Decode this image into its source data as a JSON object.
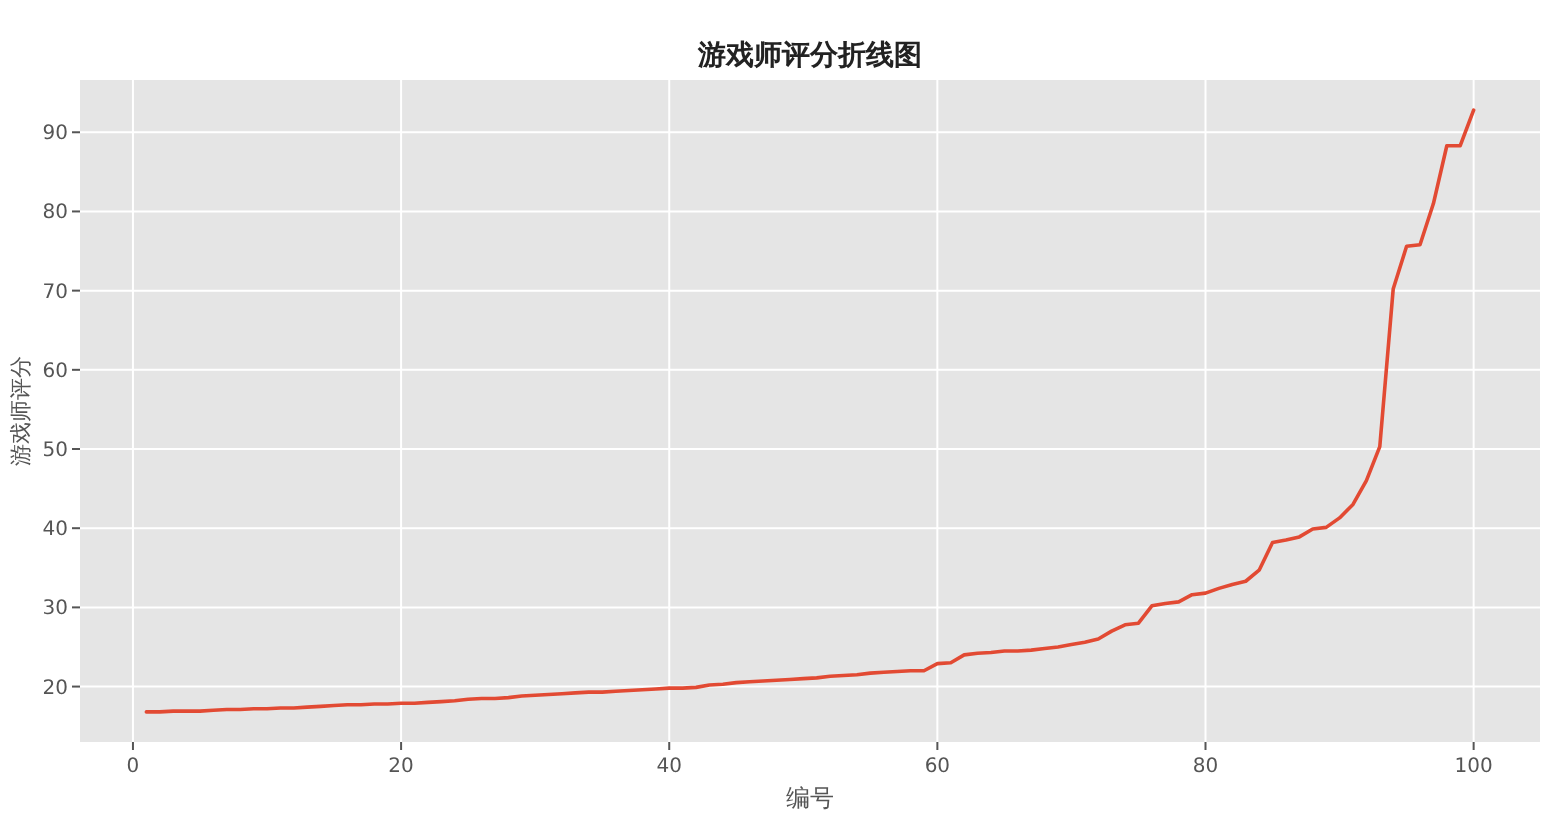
{
  "chart_data": {
    "type": "line",
    "title": "游戏师评分折线图",
    "xlabel": "编号",
    "ylabel": "游戏师评分",
    "x": [
      1,
      2,
      3,
      4,
      5,
      6,
      7,
      8,
      9,
      10,
      11,
      12,
      13,
      14,
      15,
      16,
      17,
      18,
      19,
      20,
      21,
      22,
      23,
      24,
      25,
      26,
      27,
      28,
      29,
      30,
      31,
      32,
      33,
      34,
      35,
      36,
      37,
      38,
      39,
      40,
      41,
      42,
      43,
      44,
      45,
      46,
      47,
      48,
      49,
      50,
      51,
      52,
      53,
      54,
      55,
      56,
      57,
      58,
      59,
      60,
      61,
      62,
      63,
      64,
      65,
      66,
      67,
      68,
      69,
      70,
      71,
      72,
      73,
      74,
      75,
      76,
      77,
      78,
      79,
      80,
      81,
      82,
      83,
      84,
      85,
      86,
      87,
      88,
      89,
      90,
      91,
      92,
      93,
      94,
      95,
      96,
      97,
      98,
      99,
      100
    ],
    "series": [
      {
        "color": "#e24a33",
        "values": [
          16.8,
          16.8,
          16.9,
          16.9,
          16.9,
          17.0,
          17.1,
          17.1,
          17.2,
          17.2,
          17.3,
          17.3,
          17.4,
          17.5,
          17.6,
          17.7,
          17.7,
          17.8,
          17.8,
          17.9,
          17.9,
          18.0,
          18.1,
          18.2,
          18.4,
          18.5,
          18.5,
          18.6,
          18.8,
          18.9,
          19.0,
          19.1,
          19.2,
          19.3,
          19.3,
          19.4,
          19.5,
          19.6,
          19.7,
          19.8,
          19.8,
          19.9,
          20.2,
          20.3,
          20.5,
          20.6,
          20.7,
          20.8,
          20.9,
          21.0,
          21.1,
          21.3,
          21.4,
          21.5,
          21.7,
          21.8,
          21.9,
          22.0,
          22.0,
          22.9,
          23.0,
          24.0,
          24.2,
          24.3,
          24.5,
          24.5,
          24.6,
          24.8,
          25.0,
          25.3,
          25.6,
          26.0,
          27.0,
          27.8,
          28.0,
          30.2,
          30.5,
          30.7,
          31.6,
          31.8,
          32.4,
          32.9,
          33.3,
          34.7,
          38.2,
          38.5,
          38.9,
          39.9,
          40.1,
          41.3,
          43.0,
          46.0,
          50.3,
          70.2,
          75.6,
          75.8,
          81.0,
          88.3,
          88.3,
          92.8
        ]
      }
    ],
    "xlim": [
      -3.95,
      104.95
    ],
    "xticks": [
      0,
      20,
      40,
      60,
      80,
      100
    ],
    "ylim": [
      13.0,
      96.6
    ],
    "yticks": [
      20,
      30,
      40,
      50,
      60,
      70,
      80,
      90
    ],
    "grid": true,
    "marker": "none",
    "line_style": "solid"
  }
}
